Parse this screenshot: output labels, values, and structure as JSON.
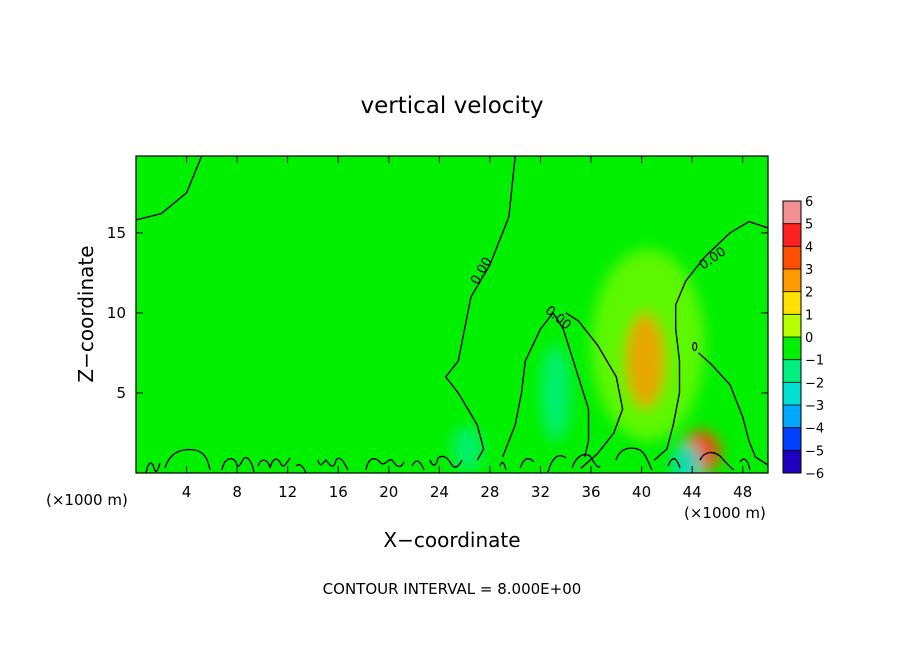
{
  "chart_data": {
    "type": "heatmap",
    "title": "vertical velocity",
    "xlabel": "X−coordinate",
    "ylabel": "Z−coordinate",
    "x_unit_label": "(×1000 m)",
    "x_unit_label_right": "(×1000 m)",
    "x_ticks": [
      4,
      8,
      12,
      16,
      20,
      24,
      28,
      32,
      36,
      40,
      44,
      48
    ],
    "y_ticks": [
      5,
      10,
      15
    ],
    "xlim": [
      0,
      50
    ],
    "ylim": [
      0,
      19.8
    ],
    "footnote": "CONTOUR INTERVAL = 8.000E+00",
    "contour_label": "0.00",
    "colorbar": {
      "ticks": [
        "6",
        "5",
        "4",
        "3",
        "2",
        "1",
        "0",
        "−1",
        "−2",
        "−3",
        "−4",
        "−5",
        "−6"
      ],
      "range": [
        -6,
        6
      ]
    },
    "zero_contours": [
      [
        [
          0,
          15.8
        ],
        [
          2,
          16.2
        ],
        [
          4,
          17.5
        ],
        [
          5.2,
          19.8
        ]
      ],
      [
        [
          30,
          19.8
        ],
        [
          29.5,
          16
        ],
        [
          28,
          13
        ],
        [
          26.5,
          11
        ],
        [
          26,
          9
        ],
        [
          25.5,
          7
        ],
        [
          24.5,
          6
        ],
        [
          25.5,
          5
        ],
        [
          27,
          3
        ],
        [
          27.5,
          1.5
        ],
        [
          27,
          0.8
        ]
      ],
      [
        [
          29,
          1
        ],
        [
          30,
          3
        ],
        [
          30.5,
          5
        ],
        [
          30.8,
          7
        ],
        [
          32,
          9
        ],
        [
          33,
          10
        ],
        [
          33.8,
          9
        ],
        [
          35,
          6
        ],
        [
          35.8,
          4
        ],
        [
          35.8,
          2
        ],
        [
          35.5,
          1
        ]
      ],
      [
        [
          35.2,
          0.3
        ],
        [
          36.5,
          1.2
        ],
        [
          37.8,
          2.5
        ],
        [
          38.5,
          4
        ],
        [
          38,
          6
        ],
        [
          36.5,
          8
        ],
        [
          35,
          9.5
        ],
        [
          34,
          10
        ]
      ],
      [
        [
          41,
          0.8
        ],
        [
          42,
          1.5
        ],
        [
          42.5,
          3
        ],
        [
          43,
          5
        ],
        [
          43,
          7
        ],
        [
          42.7,
          9
        ],
        [
          42.7,
          10.5
        ],
        [
          43.5,
          12
        ],
        [
          45,
          13.5
        ],
        [
          47,
          15
        ],
        [
          48.5,
          15.7
        ],
        [
          50,
          15.3
        ]
      ],
      [
        [
          44.5,
          7.5
        ],
        [
          45.5,
          6.8
        ],
        [
          47,
          5.5
        ],
        [
          48,
          3.5
        ],
        [
          48.5,
          2
        ],
        [
          49,
          1
        ],
        [
          50,
          0.5
        ]
      ]
    ],
    "field_features": [
      {
        "x": 40.3,
        "z": 7.0,
        "w": 2.5,
        "note": "updraft core"
      },
      {
        "x": 44.7,
        "z": 1.3,
        "w": 3.5,
        "note": "low-level updraft maximum"
      },
      {
        "x": 33.2,
        "z": 5.0,
        "w": -1.5,
        "note": "downdraft"
      },
      {
        "x": 26.2,
        "z": 1.5,
        "w": -1.0,
        "note": "weak downdraft"
      },
      {
        "x": 43.6,
        "z": 0.5,
        "w": -2.0,
        "note": "surface downdraft"
      }
    ]
  }
}
